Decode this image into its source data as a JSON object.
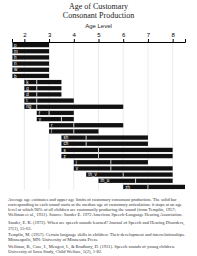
{
  "chart_data": {
    "type": "bar",
    "orientation": "horizontal",
    "title": "Age of Customary\nConsonant Production",
    "xlabel": "Age Level",
    "categories": [
      "p",
      "m",
      "h",
      "n",
      "w",
      "b",
      "k",
      "g",
      "d",
      "t",
      "ng",
      "f",
      "y",
      "r",
      "l",
      "sh",
      "ch",
      "s",
      "z",
      "j",
      "v",
      "th_v",
      "th_u",
      "zh"
    ],
    "start": [
      1.5,
      1.5,
      1.5,
      1.5,
      1.5,
      1.5,
      2.0,
      2.0,
      2.0,
      2.0,
      2.0,
      2.5,
      2.5,
      3.0,
      3.0,
      3.5,
      3.5,
      3.5,
      3.5,
      4.0,
      4.0,
      4.5,
      5.0,
      6.0
    ],
    "median": [
      1.5,
      1.5,
      1.5,
      1.5,
      1.5,
      1.5,
      2.5,
      2.5,
      2.5,
      2.5,
      2.5,
      3.0,
      3.5,
      4.0,
      4.0,
      4.5,
      4.5,
      5.0,
      5.0,
      5.5,
      5.5,
      6.0,
      6.5,
      7.0
    ],
    "end": [
      3.0,
      3.0,
      3.0,
      3.0,
      3.0,
      3.0,
      3.5,
      3.5,
      3.5,
      4.0,
      6.0,
      4.0,
      4.0,
      6.0,
      5.0,
      7.0,
      7.0,
      8.0,
      8.0,
      7.0,
      8.0,
      8.0,
      8.0,
      8.5
    ],
    "color": "#111111",
    "xlim": [
      1.5,
      8.5
    ],
    "xticks": [
      2,
      3,
      4,
      5,
      6,
      7,
      8
    ],
    "grid": true,
    "tick_labels": "x",
    "annotations": [
      "Average age estimates and upper age limits of customary consonant production. The solid bar corresponding to each sound starts at the median age of customary articulation; it stops at an age level at which 90% of all children are customarily producing the sound (from Templin, 1957; Wellman et al., 1931). Source: Sander E. 1972 American Speech-Language Hearing Association.",
      "Sander, E. K. (1972). When are speech sounds learned? Journal of Speech and Hearing Disorders, 37(1), 55-63.",
      "Templin, M. (1957). Certain language skills in children: Their development and interrelationships. Minneapolis, MN: University of Minnesota Press.",
      "Wellman, B., Case, I., Mengert, I., & Bradbury, D. (1931). Speech sounds of young children. University of Iowa Study, Child Welfare, 5(2), 1-82."
    ]
  }
}
